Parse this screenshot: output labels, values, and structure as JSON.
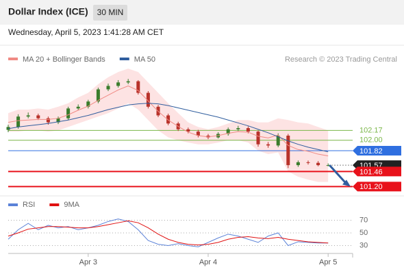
{
  "header": {
    "title": "Dollar Index (ICE)",
    "timeframe": "30 MIN"
  },
  "timestamp": "Wednesday, April 5, 2023 1:41:28 AM CET",
  "chart_data": [
    {
      "type": "candlestick",
      "source": "Research © 2023 Trading Central",
      "categories": [
        null,
        null,
        null,
        null,
        null,
        null,
        null,
        null,
        "Apr 3",
        null,
        null,
        null,
        null,
        null,
        null,
        null,
        null,
        null,
        null,
        null,
        "Apr 4",
        null,
        null,
        null,
        null,
        null,
        null,
        null,
        null,
        null,
        null,
        null,
        "Apr 5"
      ],
      "open": [
        102.18,
        102.23,
        102.41,
        102.43,
        102.38,
        102.31,
        102.38,
        102.55,
        102.58,
        102.67,
        102.88,
        102.94,
        103.0,
        103.02,
        102.82,
        102.58,
        102.43,
        102.29,
        102.19,
        102.15,
        102.08,
        102.05,
        102.11,
        102.19,
        102.21,
        102.15,
        101.93,
        101.91,
        102.08,
        101.57,
        101.62,
        101.61,
        101.57
      ],
      "high": [
        102.27,
        102.45,
        102.48,
        102.46,
        102.41,
        102.41,
        102.58,
        102.62,
        102.7,
        102.91,
        102.98,
        103.04,
        103.06,
        103.04,
        102.85,
        102.61,
        102.46,
        102.32,
        102.22,
        102.18,
        102.11,
        102.14,
        102.22,
        102.25,
        102.24,
        102.17,
        101.97,
        102.12,
        102.11,
        101.65,
        101.65,
        101.64,
        101.6
      ],
      "low": [
        102.14,
        102.2,
        102.38,
        102.35,
        102.27,
        102.28,
        102.35,
        102.52,
        102.55,
        102.64,
        102.85,
        102.91,
        102.97,
        102.79,
        102.55,
        102.4,
        102.26,
        102.16,
        102.12,
        102.05,
        102.02,
        102.03,
        102.08,
        102.16,
        102.12,
        101.89,
        101.87,
        101.88,
        101.52,
        101.54,
        101.58,
        101.55,
        101.55
      ],
      "close": [
        102.23,
        102.41,
        102.43,
        102.38,
        102.31,
        102.38,
        102.55,
        102.58,
        102.67,
        102.88,
        102.94,
        103.0,
        103.02,
        102.82,
        102.58,
        102.43,
        102.29,
        102.19,
        102.15,
        102.08,
        102.05,
        102.11,
        102.19,
        102.21,
        102.15,
        101.93,
        101.91,
        102.08,
        101.57,
        101.62,
        101.61,
        101.57,
        101.57
      ],
      "up_color": "#3a7d2c",
      "down_color": "#b8322a",
      "series": [
        {
          "name": "MA 20 + Bollinger Bands",
          "color": "#f08a84",
          "band_color": "#fde3e3",
          "values": [
            102.31,
            102.34,
            102.35,
            102.36,
            102.36,
            102.38,
            102.44,
            102.52,
            102.59,
            102.69,
            102.78,
            102.87,
            102.94,
            102.86,
            102.68,
            102.5,
            102.35,
            102.24,
            102.14,
            102.08,
            102.06,
            102.08,
            102.12,
            102.15,
            102.14,
            102.07,
            102.04,
            102.09,
            101.91,
            101.84,
            101.81,
            101.76,
            101.73
          ],
          "upper": [
            102.47,
            102.53,
            102.53,
            102.55,
            102.53,
            102.58,
            102.64,
            102.74,
            102.82,
            102.97,
            103.09,
            103.18,
            103.24,
            103.18,
            103.0,
            102.82,
            102.64,
            102.47,
            102.31,
            102.23,
            102.19,
            102.23,
            102.29,
            102.35,
            102.35,
            102.31,
            102.31,
            102.38,
            102.35,
            102.31,
            102.29,
            102.23,
            102.17
          ],
          "lower": [
            102.15,
            102.15,
            102.17,
            102.17,
            102.15,
            102.17,
            102.23,
            102.29,
            102.35,
            102.41,
            102.47,
            102.55,
            102.64,
            102.53,
            102.35,
            102.17,
            102.05,
            102.0,
            101.96,
            101.93,
            101.93,
            101.96,
            102.0,
            102.0,
            101.96,
            101.82,
            101.76,
            101.79,
            101.46,
            101.37,
            101.32,
            101.28,
            101.28
          ]
        },
        {
          "name": "MA 50",
          "color": "#2f5d9e",
          "values": [
            102.2,
            102.23,
            102.25,
            102.27,
            102.29,
            102.32,
            102.35,
            102.39,
            102.43,
            102.48,
            102.53,
            102.57,
            102.61,
            102.63,
            102.64,
            102.63,
            102.6,
            102.56,
            102.52,
            102.48,
            102.44,
            102.4,
            102.35,
            102.3,
            102.25,
            102.19,
            102.13,
            102.06,
            101.99,
            101.93,
            101.88,
            101.84,
            101.8
          ]
        }
      ],
      "levels": [
        {
          "value": 102.17,
          "label": "102.17",
          "color": "#7ab648",
          "boxed": false
        },
        {
          "value": 102.0,
          "label": "102.00",
          "color": "#7ab648",
          "boxed": false
        },
        {
          "value": 101.82,
          "label": "101.82",
          "color": "#2f6fe0",
          "boxed": true
        },
        {
          "value": 101.57,
          "label": "101.57",
          "color": "#222222",
          "boxed": true
        },
        {
          "value": 101.46,
          "label": "101.46",
          "color": "#e8121b",
          "boxed": true
        },
        {
          "value": 101.2,
          "label": "101.20",
          "color": "#e8121b",
          "boxed": true
        }
      ],
      "ylim": [
        101.05,
        103.3
      ]
    },
    {
      "type": "line",
      "series": [
        {
          "name": "RSI",
          "color": "#5b82d8",
          "values": [
            40,
            55,
            65,
            55,
            62,
            58,
            60,
            55,
            58,
            62,
            68,
            72,
            68,
            55,
            38,
            32,
            30,
            33,
            30,
            28,
            35,
            42,
            48,
            45,
            40,
            35,
            45,
            50,
            30,
            36,
            35,
            34,
            34
          ]
        },
        {
          "name": "9MA",
          "color": "#e01010",
          "values": [
            45,
            50,
            56,
            58,
            60,
            60,
            59,
            58,
            58,
            60,
            63,
            66,
            69,
            66,
            58,
            48,
            40,
            35,
            32,
            31,
            32,
            35,
            40,
            43,
            44,
            42,
            41,
            43,
            40,
            38,
            36,
            35,
            34
          ]
        }
      ],
      "ylim": [
        20,
        85
      ],
      "yticks": [
        30,
        50,
        70
      ]
    }
  ]
}
